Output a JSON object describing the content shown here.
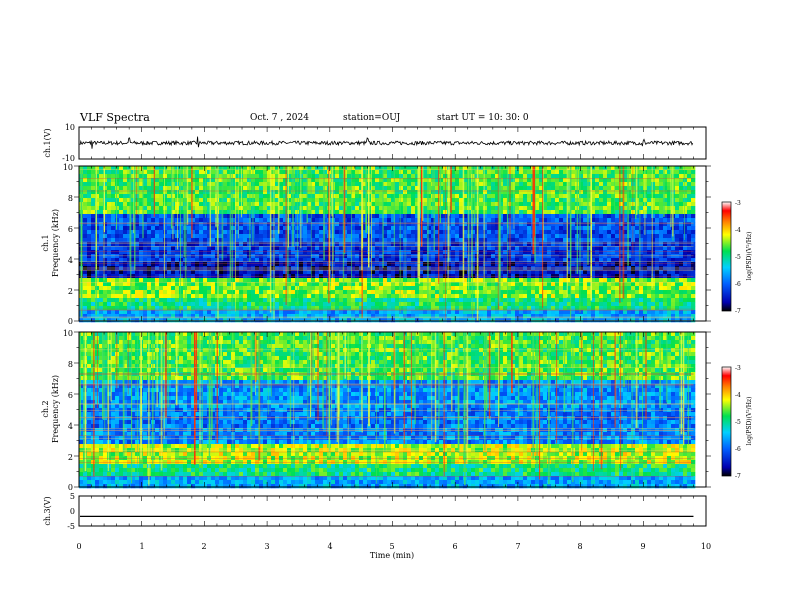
{
  "header": {
    "title": "VLF Spectra",
    "date": "Oct. 7 , 2024",
    "station": "station=OUJ",
    "start_ut": "start  UT =   10: 30: 0"
  },
  "chart_data": [
    {
      "type": "line",
      "panel": "waveform ch.1",
      "ylabel": "ch.1(V)",
      "ylim": [
        -10,
        10
      ],
      "yticks": [
        "10",
        "-10"
      ],
      "xlim": [
        0,
        10
      ],
      "series": [
        {
          "values_description_level": 0,
          "amplitude_noise": 1.2,
          "spikes_at_min": [
            0.2,
            0.8,
            1.9,
            4.6,
            9.0
          ]
        }
      ]
    },
    {
      "type": "heatmap",
      "panel": "spectrogram ch.1",
      "ylabel_line1": "ch.1",
      "ylabel_line2": "Frequency (kHz)",
      "ylim": [
        0,
        10
      ],
      "yticks": [
        "10",
        "8",
        "6",
        "4",
        "2",
        "0"
      ],
      "xlim": [
        0,
        10
      ],
      "data_end_min": 9.8,
      "colorbar": {
        "label": "log(PSD)(V²/Hz)",
        "range": [
          -7,
          -3
        ],
        "ticks": [
          "-3",
          "-4",
          "-5",
          "-6",
          "-7"
        ]
      }
    },
    {
      "type": "heatmap",
      "panel": "spectrogram ch.2",
      "ylabel_line1": "ch.2",
      "ylabel_line2": "Frequency (kHz)",
      "ylim": [
        0,
        10
      ],
      "yticks": [
        "10",
        "8",
        "6",
        "4",
        "2",
        "0"
      ],
      "xlim": [
        0,
        10
      ],
      "data_end_min": 9.8,
      "colorbar": {
        "label": "log(PSD)(V²/Hz)",
        "range": [
          -7,
          -3
        ],
        "ticks": [
          "-3",
          "-4",
          "-5",
          "-6",
          "-7"
        ]
      }
    },
    {
      "type": "line",
      "panel": "waveform ch.3",
      "ylabel": "ch.3(V)",
      "ylim": [
        -5,
        5
      ],
      "yticks": [
        "5",
        "0",
        "-5"
      ],
      "xlim": [
        0,
        10
      ],
      "series": [
        {
          "constant_value": -1.8
        }
      ]
    }
  ],
  "xaxis": {
    "label": "Time (min)",
    "ticks": [
      "0",
      "1",
      "2",
      "3",
      "4",
      "5",
      "6",
      "7",
      "8",
      "9",
      "10"
    ]
  },
  "colors": {
    "line": "#000000",
    "background": "#ffffff"
  }
}
